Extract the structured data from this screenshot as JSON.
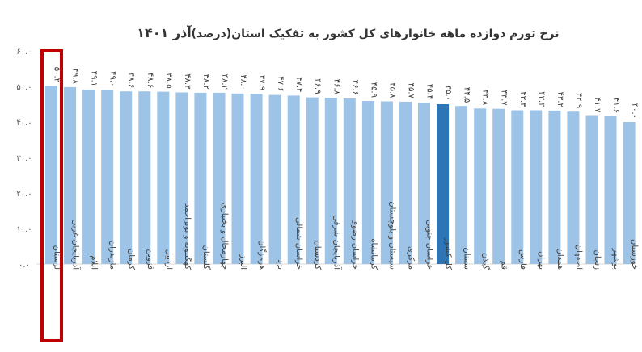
{
  "chart_data": {
    "type": "bar",
    "title": "نرخ تورم دوازده ماهه خانوارهای کل کشور به تفکیک استان(درصد)",
    "title_date": "آذر ۱۴۰۱",
    "ylim": [
      0,
      60
    ],
    "yticks": [
      "۰.۰",
      "۱۰.۰",
      "۲۰.۰",
      "۳۰.۰",
      "۴۰.۰",
      "۵۰.۰",
      "۶۰.۰"
    ],
    "grid": false,
    "highlight_category": "لرستان",
    "national_category": "کل کشور",
    "colors": {
      "bar": "#9dc3e6",
      "national_bar": "#2e75b6",
      "highlight_box": "#c00000",
      "axis": "#d9d9d9"
    },
    "categories": [
      "لرستان",
      "آذربایجان غربی",
      "ایلام",
      "مازندران",
      "کرمان",
      "قزوین",
      "اردبیل",
      "کهگیلویه و بویراحمد",
      "گلستان",
      "چهارمحال و بختیاری",
      "البرز",
      "هرمزگان",
      "یزد",
      "خراسان شمالی",
      "کردستان",
      "آذربایجان شرقی",
      "خراسان رضوی",
      "کرمانشاه",
      "سیستان و بلوچستان",
      "مرکزی",
      "خراسان جنوبی",
      "کل کشور",
      "سمنان",
      "گیلان",
      "قم",
      "فارس",
      "تهران",
      "همدان",
      "اصفهان",
      "زنجان",
      "بوشهر",
      "خوزستان"
    ],
    "values": [
      50.2,
      49.8,
      49.1,
      49.0,
      48.6,
      48.6,
      48.5,
      48.3,
      48.2,
      48.2,
      48.0,
      47.9,
      47.6,
      47.4,
      46.9,
      46.8,
      46.6,
      45.9,
      45.8,
      45.7,
      45.4,
      45.0,
      44.5,
      43.8,
      43.7,
      43.3,
      43.3,
      43.2,
      42.9,
      41.7,
      41.6,
      40.0
    ],
    "value_labels": [
      "۵۰.۲",
      "۴۹.۸",
      "۴۹.۱",
      "۴۹.۰",
      "۴۸.۶",
      "۴۸.۶",
      "۴۸.۵",
      "۴۸.۳",
      "۴۸.۲",
      "۴۸.۲",
      "۴۸.۰",
      "۴۷.۹",
      "۴۷.۶",
      "۴۷.۴",
      "۴۶.۹",
      "۴۶.۸",
      "۴۶.۶",
      "۴۵.۹",
      "۴۵.۸",
      "۴۵.۷",
      "۴۵.۴",
      "۴۵.۰",
      "۴۴.۵",
      "۴۳.۸",
      "۴۳.۷",
      "۴۳.۳",
      "۴۳.۳",
      "۴۳.۲",
      "۴۲.۹",
      "۴۱.۷",
      "۴۱.۶",
      "۴۰.۰"
    ]
  }
}
